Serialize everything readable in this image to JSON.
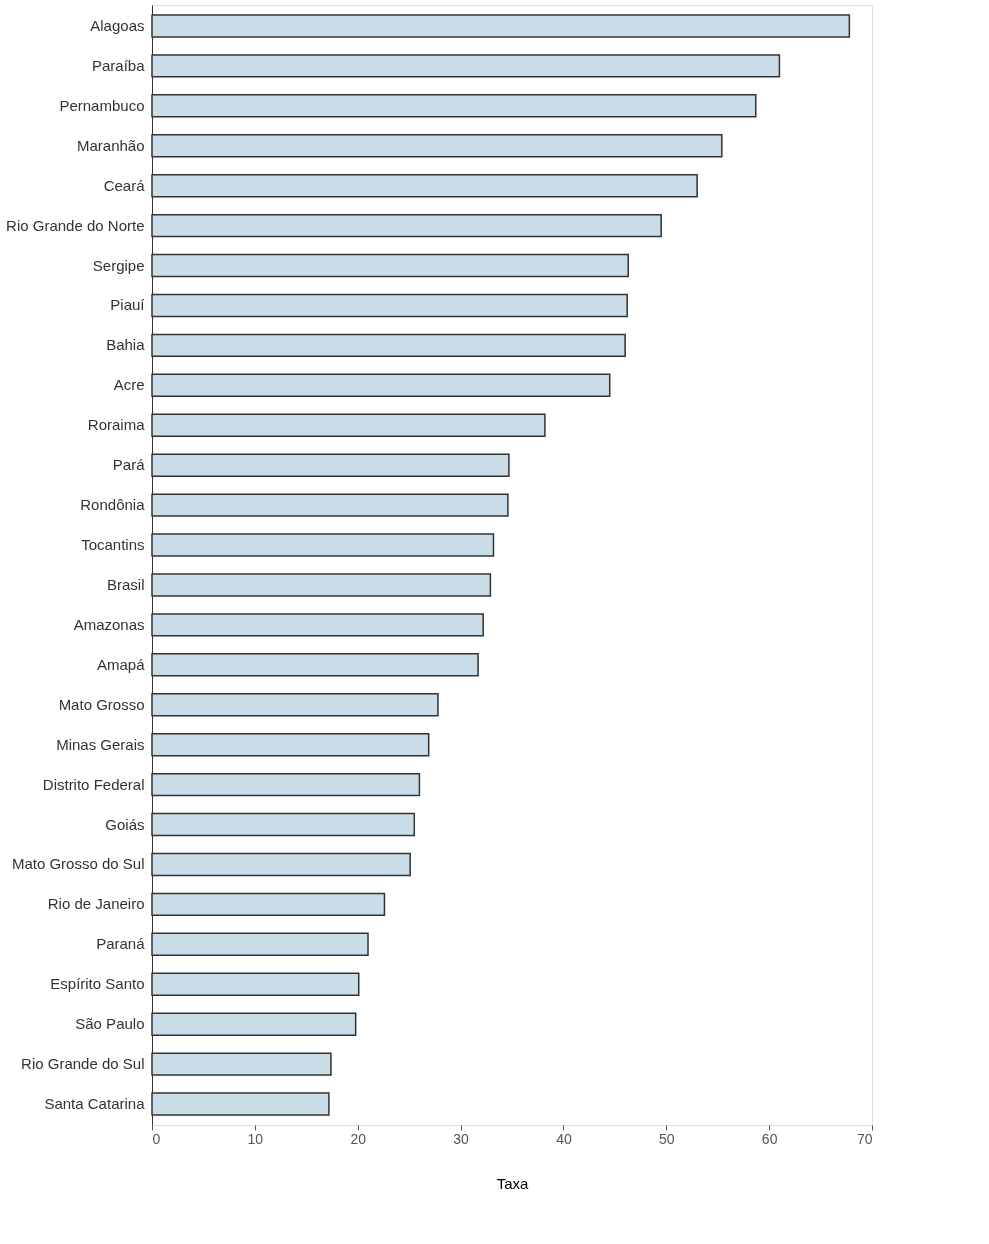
{
  "chart_data": {
    "type": "bar",
    "orientation": "horizontal",
    "xlabel": "Taxa",
    "categories": [
      "Alagoas",
      "Paraíba",
      "Pernambuco",
      "Maranhão",
      "Ceará",
      "Rio Grande do Norte",
      "Sergipe",
      "Piauí",
      "Bahia",
      "Acre",
      "Roraima",
      "Pará",
      "Rondônia",
      "Tocantins",
      "Brasil",
      "Amazonas",
      "Amapá",
      "Mato Grosso",
      "Minas Gerais",
      "Distrito Federal",
      "Goiás",
      "Mato Grosso do Sul",
      "Rio de Janeiro",
      "Paraná",
      "Espírito Santo",
      "São Paulo",
      "Rio Grande do Sul",
      "Santa Catarina"
    ],
    "values": [
      67.8,
      61.0,
      58.7,
      55.4,
      53.0,
      49.5,
      46.3,
      46.2,
      46.0,
      44.5,
      38.2,
      34.7,
      34.6,
      33.2,
      32.9,
      32.2,
      31.7,
      27.8,
      26.9,
      26.0,
      25.5,
      25.1,
      22.6,
      21.0,
      20.1,
      19.8,
      17.4,
      17.2
    ],
    "color": "#c9dce8",
    "xlim": [
      0,
      70
    ],
    "xticks": [
      0,
      10,
      20,
      30,
      40,
      50,
      60,
      70
    ],
    "grid": false
  }
}
